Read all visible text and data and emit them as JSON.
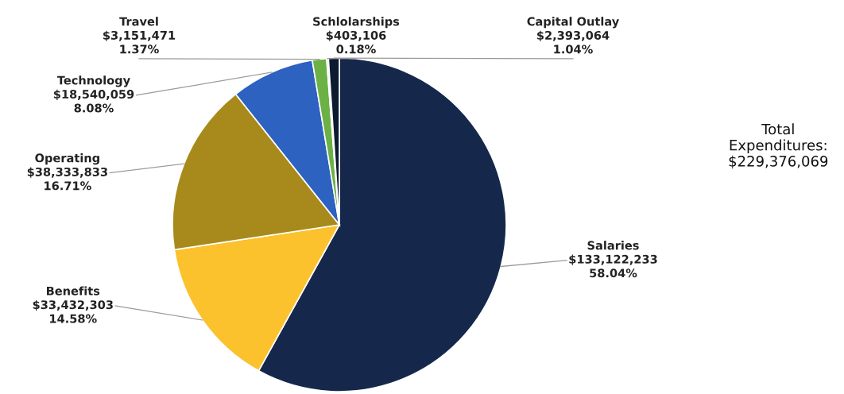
{
  "chart_data": {
    "type": "pie",
    "categories": [
      "Salaries",
      "Benefits",
      "Operating",
      "Technology",
      "Travel",
      "Schlolarships",
      "Capital Outlay"
    ],
    "values": [
      133122233,
      33432303,
      38333833,
      18540059,
      3151471,
      403106,
      2393064
    ],
    "value_labels": [
      "$133,122,233\n58.04%",
      "$33,432,303\n14.58%",
      "$38,333,833\n16.71%",
      "$18,540,059\n8.08%",
      "$3,151,471\n1.37%",
      "$403,106\n0.18%",
      "$2,393,064\n1.04%"
    ],
    "colors": [
      "#15284c",
      "#fbc22e",
      "#a88a1c",
      "#2e62c0",
      "#6cb145",
      "#e4e9ef",
      "#0e1a30"
    ],
    "annotations": [
      "Total\nExpenditures:\n$229,376,069"
    ],
    "legend": false
  }
}
